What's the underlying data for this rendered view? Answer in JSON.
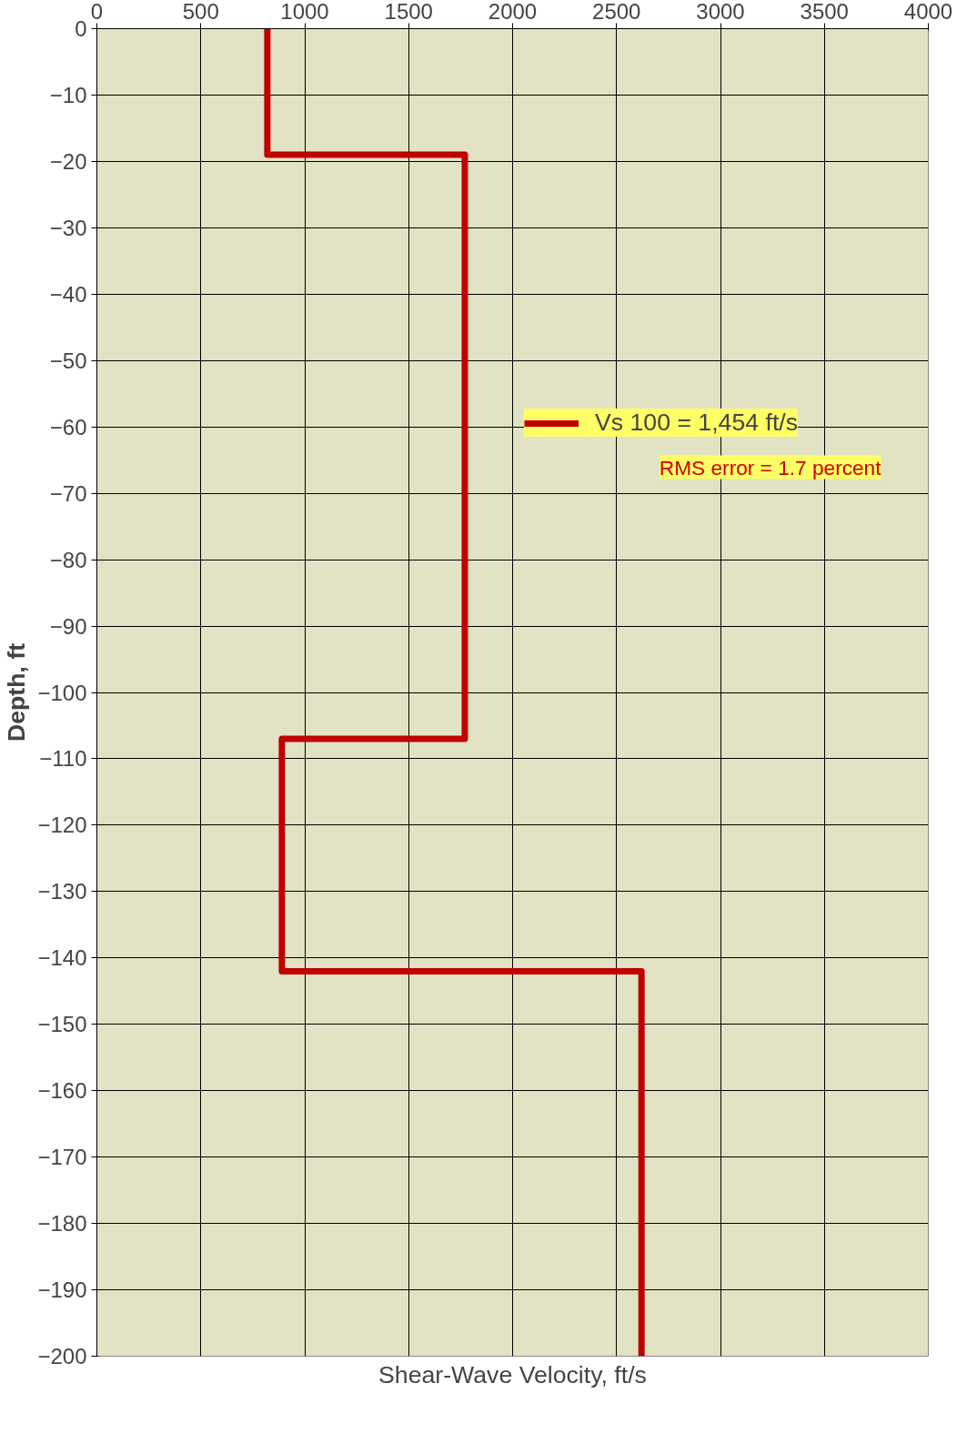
{
  "chart_data": {
    "type": "line",
    "xlabel": "Shear-Wave Velocity, ft/s",
    "ylabel": "Depth, ft",
    "series": [
      {
        "name": "Vs 100 = 1,454 ft/s",
        "color": "#c00000",
        "x": [
          820,
          820,
          1770,
          1770,
          890,
          890,
          2620,
          2620
        ],
        "values": [
          0,
          -19,
          -19,
          -107,
          -107,
          -142,
          -142,
          -200
        ]
      }
    ],
    "xlim": [
      0,
      4000
    ],
    "xticks": [
      0,
      500,
      1000,
      1500,
      2000,
      2500,
      3000,
      3500,
      4000
    ],
    "ylim": [
      -200,
      0
    ],
    "yticks": [
      0,
      -10,
      -20,
      -30,
      -40,
      -50,
      -60,
      -70,
      -80,
      -90,
      -100,
      -110,
      -120,
      -130,
      -140,
      -150,
      -160,
      -170,
      -180,
      -190,
      -200
    ],
    "grid": true,
    "legend": "top right",
    "marker": "none",
    "line_style": "solid",
    "annotations": [
      "RMS error = 1.7 percent"
    ]
  }
}
